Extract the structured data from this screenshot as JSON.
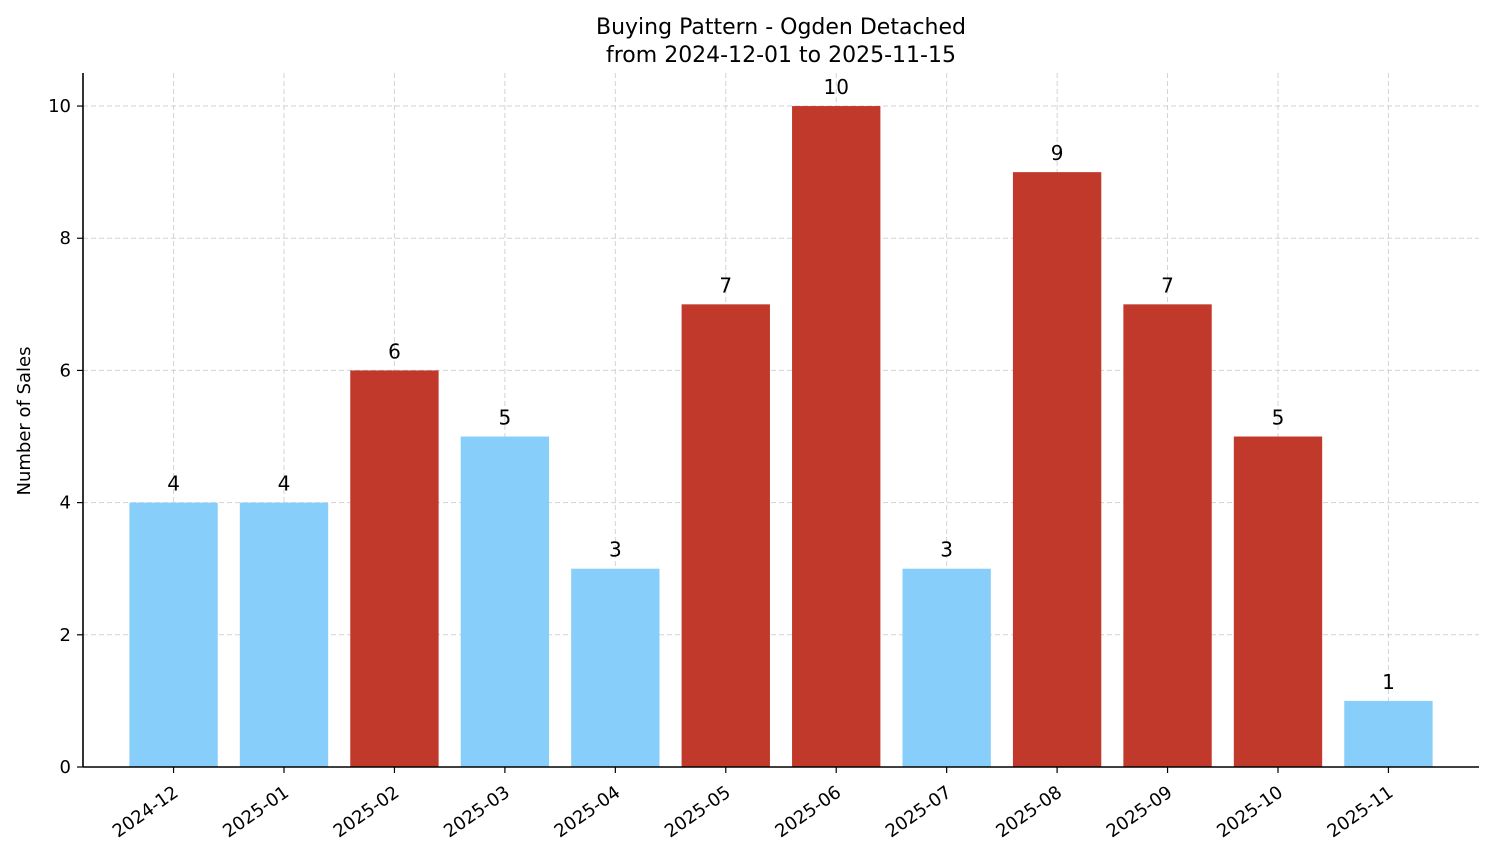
{
  "chart_data": {
    "type": "bar",
    "title": "Buying Pattern - Ogden Detached",
    "subtitle": "from 2024-12-01 to 2025-11-15",
    "xlabel": "",
    "ylabel": "Number of Sales",
    "categories": [
      "2024-12",
      "2025-01",
      "2025-02",
      "2025-03",
      "2025-04",
      "2025-05",
      "2025-06",
      "2025-07",
      "2025-08",
      "2025-09",
      "2025-10",
      "2025-11"
    ],
    "values": [
      4,
      4,
      6,
      5,
      3,
      7,
      10,
      3,
      9,
      7,
      5,
      1
    ],
    "bar_colors": [
      "#87cefa",
      "#87cefa",
      "#c0392b",
      "#87cefa",
      "#87cefa",
      "#c0392b",
      "#c0392b",
      "#87cefa",
      "#c0392b",
      "#c0392b",
      "#c0392b",
      "#87cefa"
    ],
    "ylim": [
      0,
      10.5
    ],
    "yticks": [
      0,
      2,
      4,
      6,
      8,
      10
    ],
    "grid": true,
    "legend": "none"
  }
}
